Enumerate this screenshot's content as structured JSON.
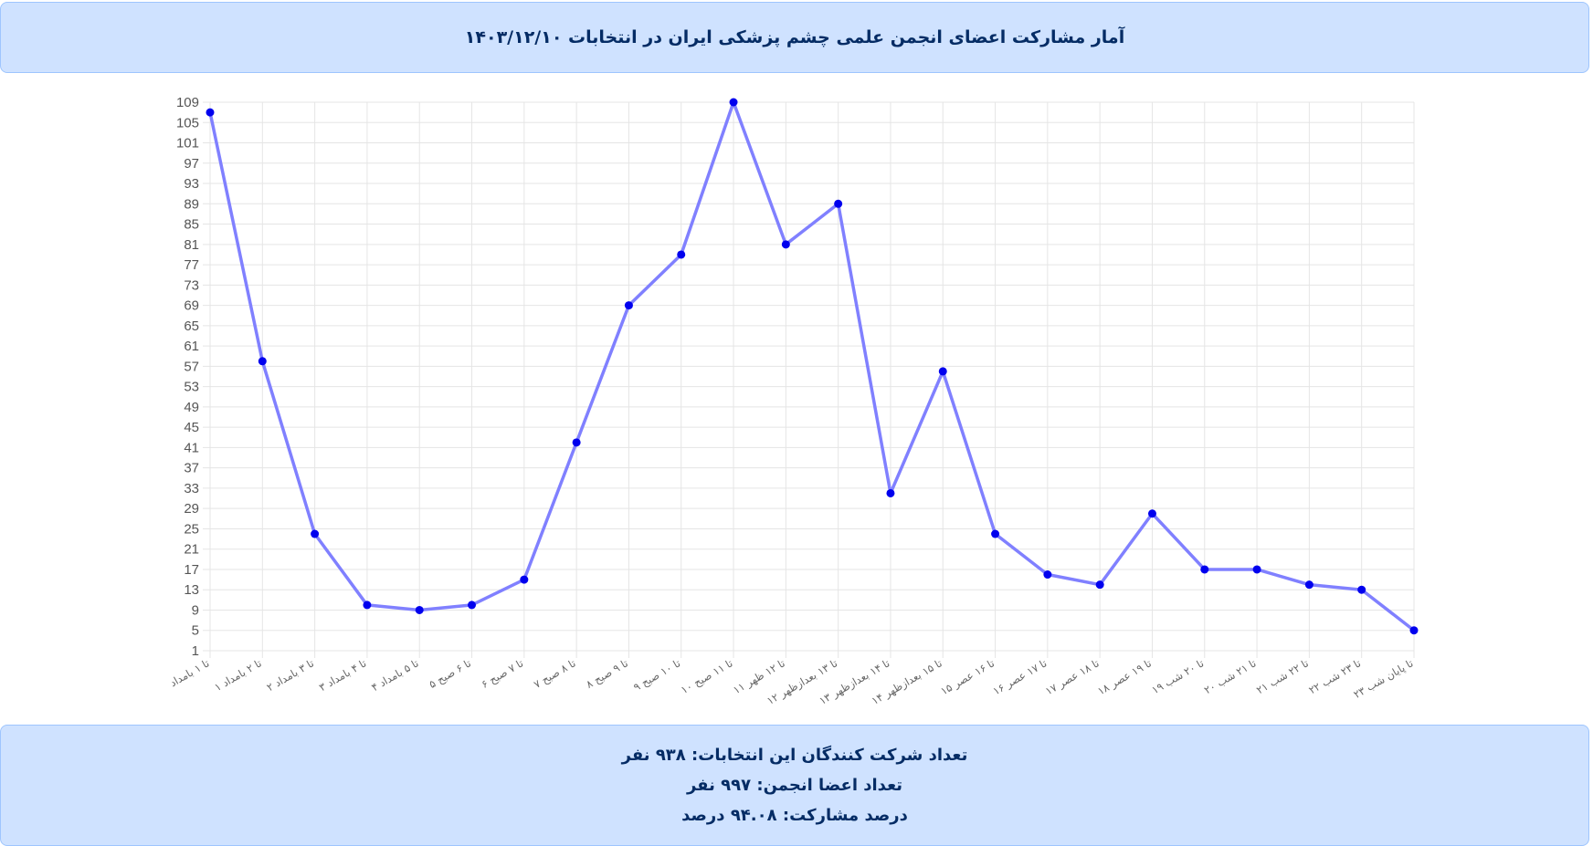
{
  "header": {
    "title": "آمار مشارکت اعضای انجمن علمی چشم پزشکی ایران در انتخابات ۱۴۰۳/۱۲/۱۰"
  },
  "footer": {
    "participants": "تعداد شرکت کنندگان این انتخابات: ۹۳۸ نفر",
    "members": "تعداد اعضا انجمن: ۹۹۷ نفر",
    "percentage": "درصد مشارکت: ۹۴.۰۸ درصد"
  },
  "colors": {
    "line": "#8080ff",
    "point": "#0000ee",
    "grid": "#e5e5e5",
    "panel_bg": "#cfe2ff",
    "panel_border": "#9ec5fe",
    "panel_text": "#052c65"
  },
  "chart_data": {
    "type": "line",
    "title": "",
    "xlabel": "",
    "ylabel": "",
    "ylim": [
      1,
      109
    ],
    "yticks": [
      109,
      105,
      101,
      97,
      93,
      89,
      85,
      81,
      77,
      73,
      69,
      65,
      61,
      57,
      53,
      49,
      45,
      41,
      37,
      33,
      29,
      25,
      21,
      17,
      13,
      9,
      5,
      1
    ],
    "grid": true,
    "legend": "none",
    "categories": [
      "تا ۱ بامداد",
      "۱ تا ۲ بامداد",
      "۲ تا ۳ بامداد",
      "۳ تا ۴ بامداد",
      "۴ تا ۵ بامداد",
      "۵ تا ۶ صبح",
      "۶ تا ۷ صبح",
      "۷ تا ۸ صبح",
      "۸ تا ۹ صبح",
      "۹ تا ۱۰ صبح",
      "۱۰ تا ۱۱ صبح",
      "۱۱ تا ۱۲ ظهر",
      "۱۲ تا ۱۳ بعدازظهر",
      "۱۳ تا ۱۴ بعدازظهر",
      "۱۴ تا ۱۵ بعدازظهر",
      "۱۵ تا ۱۶ عصر",
      "۱۶ تا ۱۷ عصر",
      "۱۷ تا ۱۸ عصر",
      "۱۸ تا ۱۹ عصر",
      "۱۹ تا ۲۰ شب",
      "۲۰ تا ۲۱ شب",
      "۲۱ تا ۲۲ شب",
      "۲۲ تا ۲۳ شب",
      "۲۳ تا پایان شب"
    ],
    "series": [
      {
        "values": [
          107,
          58,
          24,
          10,
          9,
          10,
          15,
          42,
          69,
          79,
          109,
          81,
          89,
          32,
          56,
          24,
          16,
          14,
          28,
          17,
          17,
          14,
          13,
          5
        ]
      }
    ]
  }
}
